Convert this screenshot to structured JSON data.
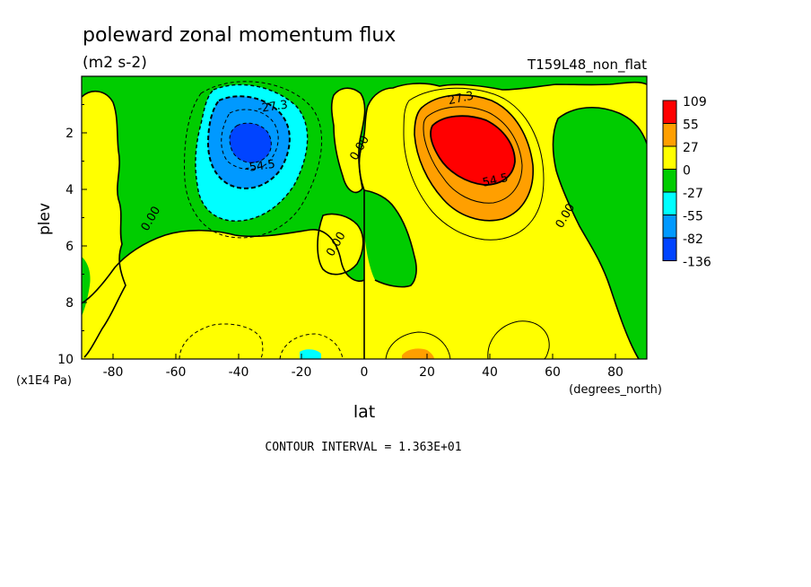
{
  "chart_data": {
    "type": "heatmap",
    "title": "poleward zonal momentum flux",
    "units": "(m2 s-2)",
    "dataset": "T159L48_non_flat",
    "xlabel": "lat",
    "x_units": "(degrees_north)",
    "ylabel": "plev",
    "y_units": "(x1E4 Pa)",
    "xlim": [
      -90,
      90
    ],
    "ylim": [
      10,
      0
    ],
    "x_ticks": [
      -80,
      -60,
      -40,
      -20,
      0,
      20,
      40,
      60,
      80
    ],
    "y_ticks": [
      2,
      4,
      6,
      8,
      10
    ],
    "contour_interval_text": "CONTOUR INTERVAL = 1.363E+01",
    "contour_labels": [
      {
        "text": "-27.3",
        "lat": -29,
        "plev": 1.2
      },
      {
        "text": "-54.5",
        "lat": -33,
        "plev": 3.3
      },
      {
        "text": "0.00",
        "lat": -67,
        "plev": 5.1
      },
      {
        "text": "0.00",
        "lat": -0.5,
        "plev": 2.6
      },
      {
        "text": "0.00",
        "lat": -8,
        "plev": 6.0
      },
      {
        "text": "27.3",
        "lat": 31,
        "plev": 0.9
      },
      {
        "text": "54.5",
        "lat": 42,
        "plev": 3.8
      },
      {
        "text": "0.00",
        "lat": 65,
        "plev": 5.0
      }
    ],
    "legend": {
      "levels": [
        "109",
        "55",
        "27",
        "0",
        "-27",
        "-55",
        "-82",
        "-136"
      ],
      "colors": [
        "#ff0000",
        "#ff9f00",
        "#ffff00",
        "#00cc00",
        "#00ffff",
        "#0099ff",
        "#0044ff"
      ]
    },
    "features": [
      {
        "sign": "negative",
        "center_lat": -36,
        "center_plev": 2.4,
        "peak": -82
      },
      {
        "sign": "positive",
        "center_lat": 33,
        "center_plev": 2.6,
        "peak": 109
      }
    ]
  }
}
